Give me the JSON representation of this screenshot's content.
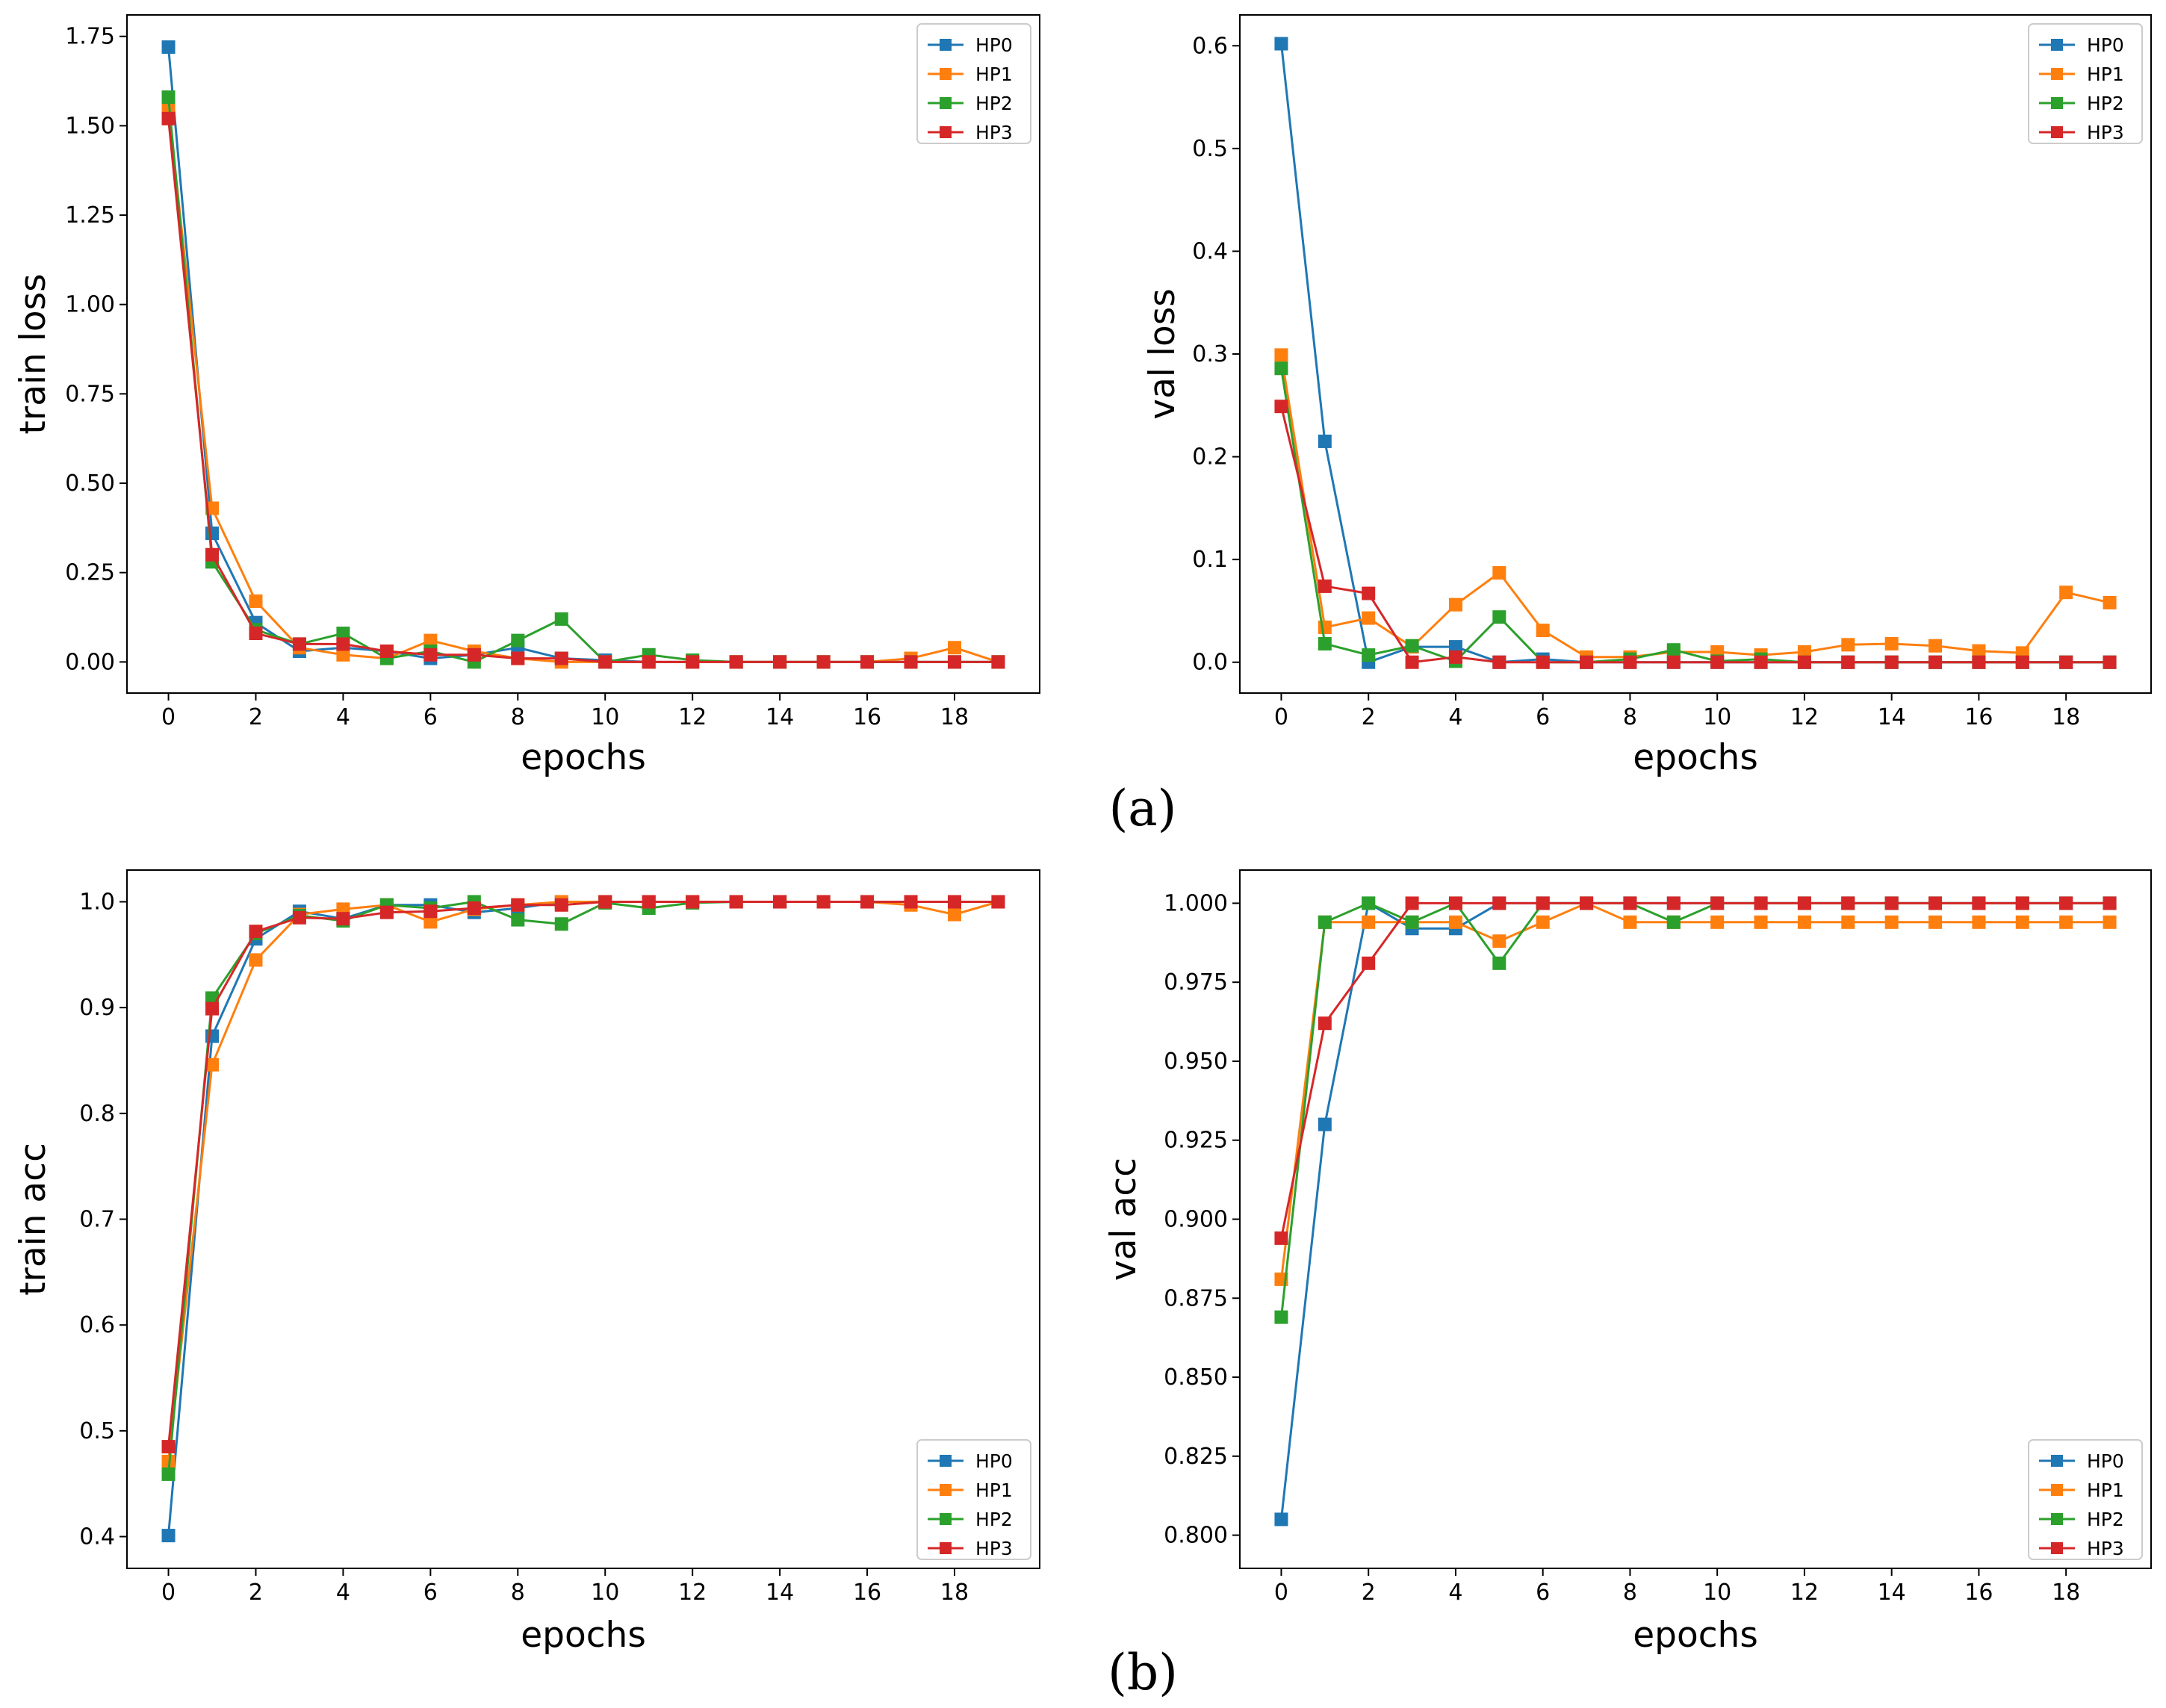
{
  "figure": {
    "caption_a": "(a)",
    "caption_b": "(b)"
  },
  "colors": {
    "HP0": "#1f77b4",
    "HP1": "#ff7f0e",
    "HP2": "#2ca02c",
    "HP3": "#d62728"
  },
  "chart_data": [
    {
      "type": "line",
      "title": "",
      "xlabel": "epochs",
      "ylabel": "train loss",
      "xlim": [
        -0.95,
        19.95
      ],
      "ylim": [
        -0.087,
        1.81
      ],
      "xticks": [
        0,
        2,
        4,
        6,
        8,
        10,
        12,
        14,
        16,
        18
      ],
      "xtick_labels": [
        "0",
        "2",
        "4",
        "6",
        "8",
        "10",
        "12",
        "14",
        "16",
        "18"
      ],
      "yticks": [
        0,
        0.25,
        0.5,
        0.75,
        1.0,
        1.25,
        1.5,
        1.75
      ],
      "ytick_labels": [
        "0.00",
        "0.25",
        "0.50",
        "0.75",
        "1.00",
        "1.25",
        "1.50",
        "1.75"
      ],
      "legend_loc": "top-right",
      "x": [
        0,
        1,
        2,
        3,
        4,
        5,
        6,
        7,
        8,
        9,
        10,
        11,
        12,
        13,
        14,
        15,
        16,
        17,
        18,
        19
      ],
      "series": [
        {
          "name": "HP0",
          "values": [
            1.72,
            0.36,
            0.11,
            0.03,
            0.04,
            0.03,
            0.01,
            0.02,
            0.04,
            0.01,
            0.005,
            0.0,
            0.0,
            0.0,
            0.0,
            0.0,
            0.0,
            0.0,
            0.0,
            0.0
          ]
        },
        {
          "name": "HP1",
          "values": [
            1.55,
            0.43,
            0.17,
            0.04,
            0.02,
            0.01,
            0.06,
            0.03,
            0.01,
            0.0,
            0.0,
            0.0,
            0.0,
            0.0,
            0.0,
            0.0,
            0.0,
            0.01,
            0.04,
            0.0
          ]
        },
        {
          "name": "HP2",
          "values": [
            1.58,
            0.28,
            0.09,
            0.05,
            0.08,
            0.01,
            0.03,
            0.0,
            0.06,
            0.12,
            0.0,
            0.02,
            0.005,
            0.0,
            0.0,
            0.0,
            0.0,
            0.0,
            0.0,
            0.0
          ]
        },
        {
          "name": "HP3",
          "values": [
            1.52,
            0.3,
            0.08,
            0.05,
            0.05,
            0.03,
            0.02,
            0.02,
            0.01,
            0.01,
            0.0,
            0.0,
            0.0,
            0.0,
            0.0,
            0.0,
            0.0,
            0.0,
            0.0,
            0.0
          ]
        }
      ]
    },
    {
      "type": "line",
      "title": "",
      "xlabel": "epochs",
      "ylabel": "val loss",
      "xlim": [
        -0.95,
        19.95
      ],
      "ylim": [
        -0.03,
        0.63
      ],
      "xticks": [
        0,
        2,
        4,
        6,
        8,
        10,
        12,
        14,
        16,
        18
      ],
      "xtick_labels": [
        "0",
        "2",
        "4",
        "6",
        "8",
        "10",
        "12",
        "14",
        "16",
        "18"
      ],
      "yticks": [
        0,
        0.1,
        0.2,
        0.3,
        0.4,
        0.5,
        0.6
      ],
      "ytick_labels": [
        "0.0",
        "0.1",
        "0.2",
        "0.3",
        "0.4",
        "0.5",
        "0.6"
      ],
      "legend_loc": "top-right",
      "x": [
        0,
        1,
        2,
        3,
        4,
        5,
        6,
        7,
        8,
        9,
        10,
        11,
        12,
        13,
        14,
        15,
        16,
        17,
        18,
        19
      ],
      "series": [
        {
          "name": "HP0",
          "values": [
            0.602,
            0.215,
            0.0,
            0.015,
            0.015,
            0.0,
            0.003,
            0.0,
            0.0,
            0.0,
            0.0,
            0.0,
            0.0,
            0.0,
            0.0,
            0.0,
            0.0,
            0.0,
            0.0,
            0.0
          ]
        },
        {
          "name": "HP1",
          "values": [
            0.299,
            0.034,
            0.043,
            0.015,
            0.056,
            0.087,
            0.031,
            0.005,
            0.005,
            0.01,
            0.01,
            0.007,
            0.01,
            0.017,
            0.018,
            0.016,
            0.011,
            0.009,
            0.068,
            0.058
          ]
        },
        {
          "name": "HP2",
          "values": [
            0.286,
            0.018,
            0.007,
            0.016,
            0.001,
            0.044,
            0.0,
            0.0,
            0.003,
            0.012,
            0.001,
            0.003,
            0.0,
            0.0,
            0.0,
            0.0,
            0.0,
            0.0,
            0.0,
            0.0
          ]
        },
        {
          "name": "HP3",
          "values": [
            0.249,
            0.074,
            0.067,
            0.0,
            0.005,
            0.0,
            0.0,
            0.0,
            0.0,
            0.0,
            0.0,
            0.0,
            0.0,
            0.0,
            0.0,
            0.0,
            0.0,
            0.0,
            0.0,
            0.0
          ]
        }
      ]
    },
    {
      "type": "line",
      "title": "",
      "xlabel": "epochs",
      "ylabel": "train acc",
      "xlim": [
        -0.95,
        19.95
      ],
      "ylim": [
        0.37,
        1.03
      ],
      "xticks": [
        0,
        2,
        4,
        6,
        8,
        10,
        12,
        14,
        16,
        18
      ],
      "xtick_labels": [
        "0",
        "2",
        "4",
        "6",
        "8",
        "10",
        "12",
        "14",
        "16",
        "18"
      ],
      "yticks": [
        0.4,
        0.5,
        0.6,
        0.7,
        0.8,
        0.9,
        1.0
      ],
      "ytick_labels": [
        "0.4",
        "0.5",
        "0.6",
        "0.7",
        "0.8",
        "0.9",
        "1.0"
      ],
      "legend_loc": "bottom-right",
      "x": [
        0,
        1,
        2,
        3,
        4,
        5,
        6,
        7,
        8,
        9,
        10,
        11,
        12,
        13,
        14,
        15,
        16,
        17,
        18,
        19
      ],
      "series": [
        {
          "name": "HP0",
          "values": [
            0.401,
            0.873,
            0.965,
            0.991,
            0.984,
            0.997,
            0.997,
            0.99,
            0.994,
            1.0,
            1.0,
            1.0,
            1.0,
            1.0,
            1.0,
            1.0,
            1.0,
            1.0,
            1.0,
            1.0
          ]
        },
        {
          "name": "HP1",
          "values": [
            0.471,
            0.846,
            0.945,
            0.988,
            0.993,
            0.997,
            0.981,
            0.993,
            0.997,
            1.0,
            1.0,
            1.0,
            1.0,
            1.0,
            1.0,
            1.0,
            1.0,
            0.997,
            0.988,
            1.0
          ]
        },
        {
          "name": "HP2",
          "values": [
            0.459,
            0.909,
            0.97,
            0.987,
            0.982,
            0.997,
            0.994,
            1.0,
            0.983,
            0.979,
            0.999,
            0.994,
            0.999,
            1.0,
            1.0,
            1.0,
            1.0,
            1.0,
            1.0,
            1.0
          ]
        },
        {
          "name": "HP3",
          "values": [
            0.485,
            0.899,
            0.972,
            0.985,
            0.984,
            0.99,
            0.991,
            0.994,
            0.997,
            0.997,
            1.0,
            1.0,
            1.0,
            1.0,
            1.0,
            1.0,
            1.0,
            1.0,
            1.0,
            1.0
          ]
        }
      ]
    },
    {
      "type": "line",
      "title": "",
      "xlabel": "epochs",
      "ylabel": "val acc",
      "xlim": [
        -0.95,
        19.95
      ],
      "ylim": [
        0.7895,
        1.0105
      ],
      "xticks": [
        0,
        2,
        4,
        6,
        8,
        10,
        12,
        14,
        16,
        18
      ],
      "xtick_labels": [
        "0",
        "2",
        "4",
        "6",
        "8",
        "10",
        "12",
        "14",
        "16",
        "18"
      ],
      "yticks": [
        0.8,
        0.825,
        0.85,
        0.875,
        0.9,
        0.925,
        0.95,
        0.975,
        1.0
      ],
      "ytick_labels": [
        "0.800",
        "0.825",
        "0.850",
        "0.875",
        "0.900",
        "0.925",
        "0.950",
        "0.975",
        "1.000"
      ],
      "legend_loc": "bottom-right",
      "x": [
        0,
        1,
        2,
        3,
        4,
        5,
        6,
        7,
        8,
        9,
        10,
        11,
        12,
        13,
        14,
        15,
        16,
        17,
        18,
        19
      ],
      "series": [
        {
          "name": "HP0",
          "values": [
            0.805,
            0.93,
            1.0,
            0.992,
            0.992,
            1.0,
            1.0,
            1.0,
            1.0,
            1.0,
            1.0,
            1.0,
            1.0,
            1.0,
            1.0,
            1.0,
            1.0,
            1.0,
            1.0,
            1.0
          ]
        },
        {
          "name": "HP1",
          "values": [
            0.881,
            0.994,
            0.994,
            0.994,
            0.994,
            0.988,
            0.994,
            1.0,
            0.994,
            0.994,
            0.994,
            0.994,
            0.994,
            0.994,
            0.994,
            0.994,
            0.994,
            0.994,
            0.994,
            0.994
          ]
        },
        {
          "name": "HP2",
          "values": [
            0.869,
            0.994,
            1.0,
            0.994,
            1.0,
            0.981,
            1.0,
            1.0,
            1.0,
            0.994,
            1.0,
            1.0,
            1.0,
            1.0,
            1.0,
            1.0,
            1.0,
            1.0,
            1.0,
            1.0
          ]
        },
        {
          "name": "HP3",
          "values": [
            0.894,
            0.962,
            0.981,
            1.0,
            1.0,
            1.0,
            1.0,
            1.0,
            1.0,
            1.0,
            1.0,
            1.0,
            1.0,
            1.0,
            1.0,
            1.0,
            1.0,
            1.0,
            1.0,
            1.0
          ]
        }
      ]
    }
  ]
}
